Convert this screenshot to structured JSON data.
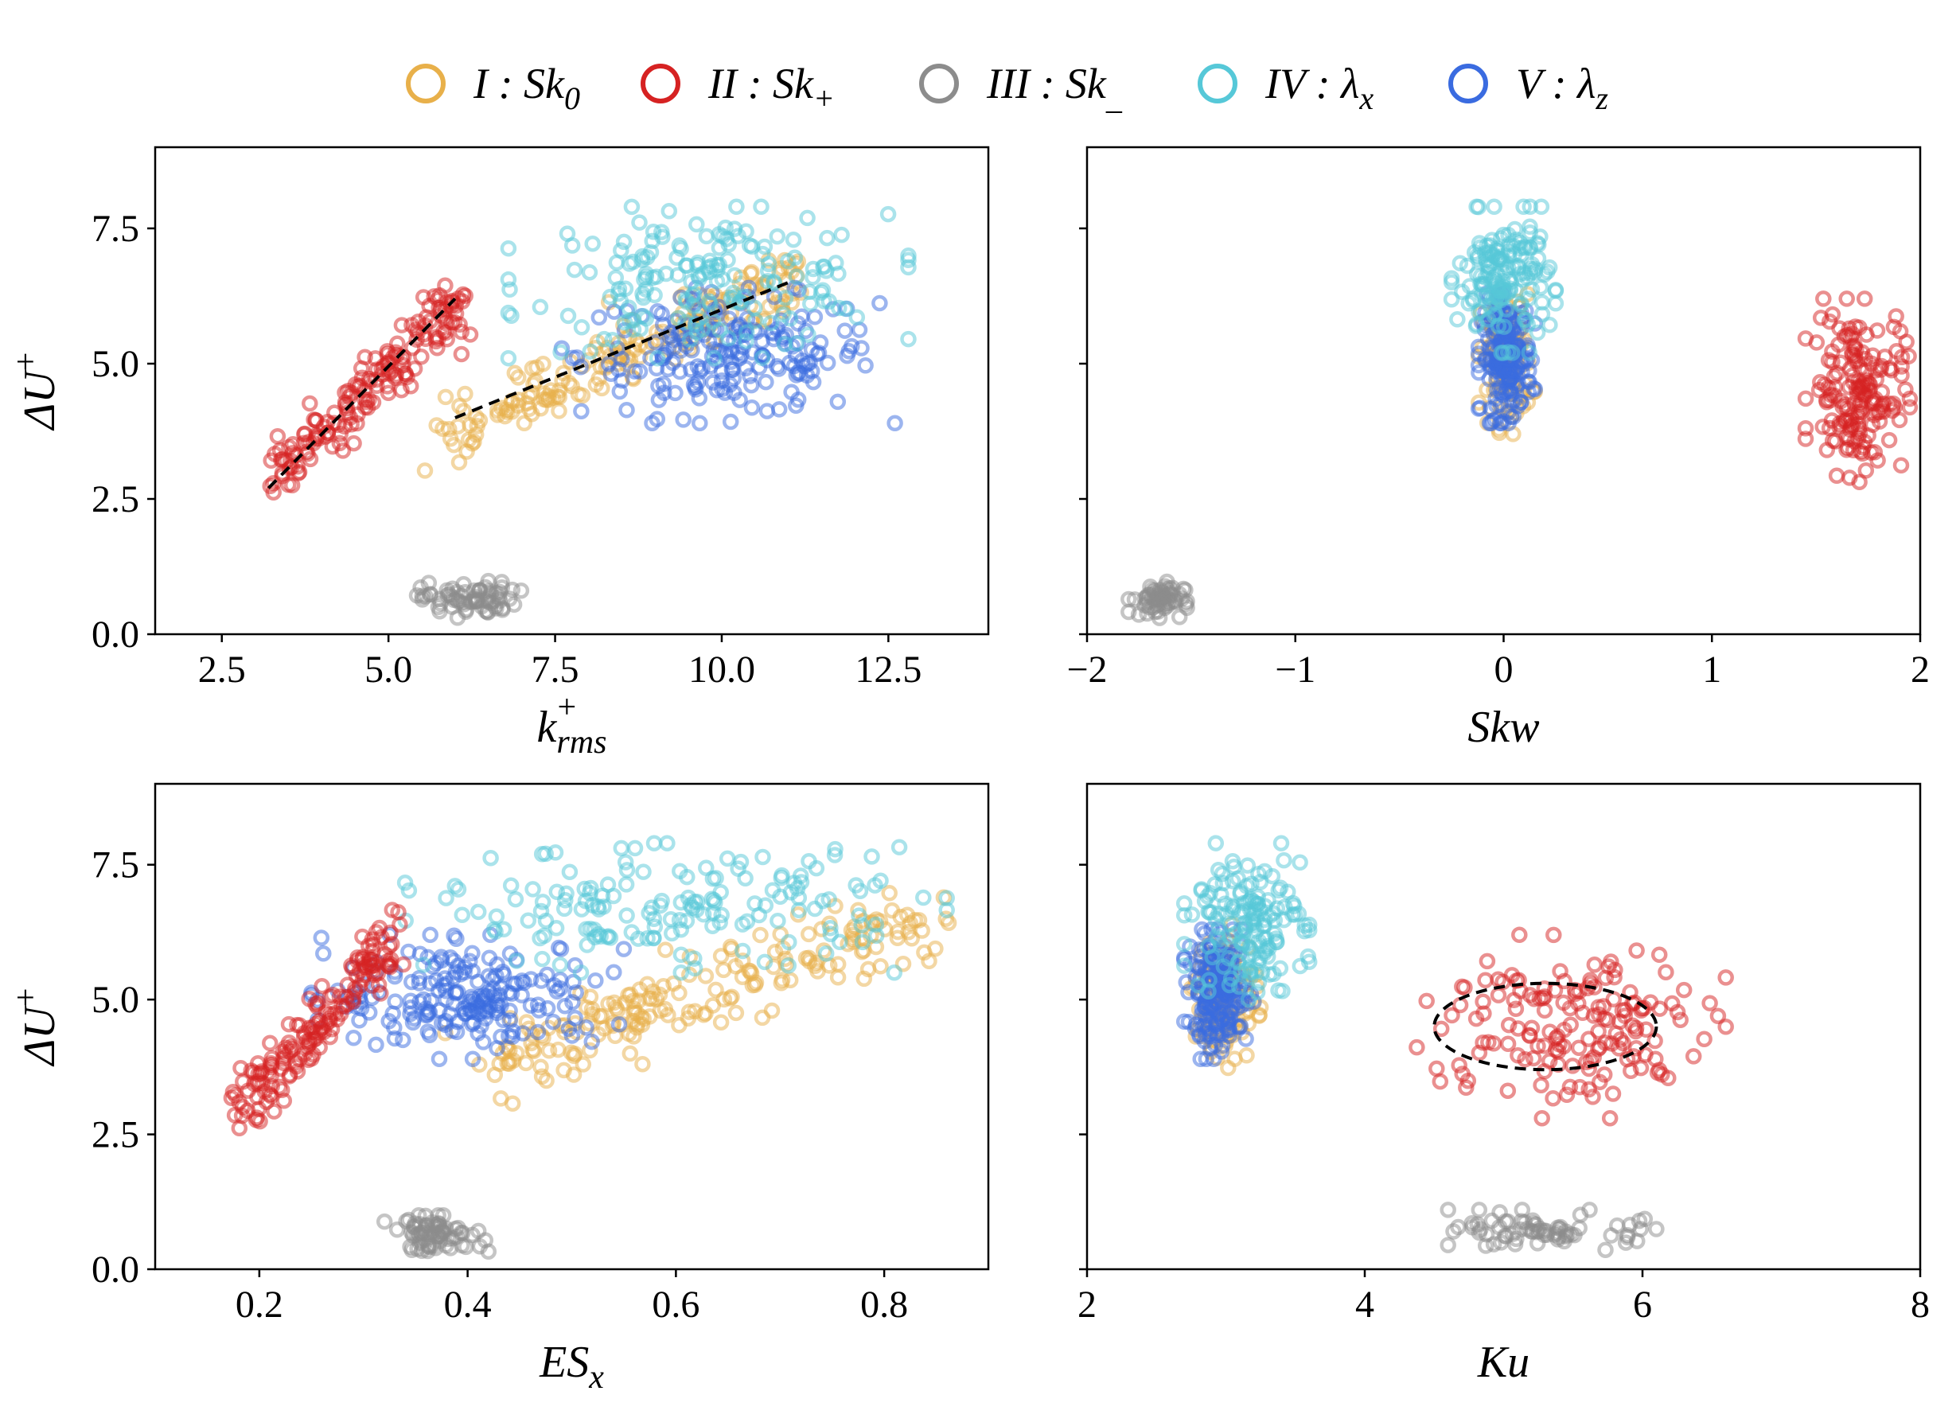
{
  "legend": [
    {
      "id": "I",
      "label": "I : Sk",
      "sub": "0",
      "sup": "",
      "color": "#E8B04A"
    },
    {
      "id": "II",
      "label": "II : Sk",
      "sub": "+",
      "sup": "",
      "color": "#D62222"
    },
    {
      "id": "III",
      "label": "III : Sk",
      "sub": "_",
      "sup": "",
      "color": "#8C8C8C"
    },
    {
      "id": "IV",
      "label": "IV : λ",
      "sub": "x",
      "sup": "",
      "color": "#56C8D8"
    },
    {
      "id": "V",
      "label": "V : λ",
      "sub": "z",
      "sup": "",
      "color": "#3A6BE0"
    }
  ],
  "chart_data": [
    {
      "type": "scatter",
      "title": "",
      "xlabel": {
        "base": "k",
        "sub": "rms",
        "sup": "+"
      },
      "ylabel": {
        "base": "ΔU",
        "sup": "+"
      },
      "xlim": [
        1.5,
        14.0
      ],
      "ylim": [
        0.0,
        9.0
      ],
      "xticks": [
        "2.5",
        "5.0",
        "7.5",
        "10.0",
        "12.5"
      ],
      "yticks": [
        "0.0",
        "2.5",
        "5.0",
        "7.5"
      ],
      "grid": false,
      "series": [
        {
          "name": "I",
          "clusters": [
            {
              "x": [
                5.8,
                11.2
              ],
              "y": [
                3.7,
                6.6
              ],
              "n": 180,
              "shape": "line",
              "spread": 0.28
            }
          ]
        },
        {
          "name": "II",
          "clusters": [
            {
              "x": [
                3.2,
                6.1
              ],
              "y": [
                2.8,
                6.2
              ],
              "n": 160,
              "shape": "line",
              "spread": 0.28
            }
          ]
        },
        {
          "name": "III",
          "clusters": [
            {
              "x": [
                5.4,
                7.0
              ],
              "y": [
                0.3,
                1.0
              ],
              "n": 70,
              "shape": "box"
            }
          ]
        },
        {
          "name": "IV",
          "clusters": [
            {
              "x": [
                6.8,
                12.8
              ],
              "y": [
                5.1,
                7.9
              ],
              "n": 170,
              "shape": "box"
            }
          ]
        },
        {
          "name": "V",
          "clusters": [
            {
              "x": [
                7.6,
                12.6
              ],
              "y": [
                3.9,
                6.4
              ],
              "n": 190,
              "shape": "box"
            }
          ]
        }
      ],
      "annotations": [
        {
          "type": "dashed-line",
          "x": [
            3.2,
            6.0
          ],
          "y": [
            2.7,
            6.2
          ]
        },
        {
          "type": "dashed-line",
          "x": [
            6.0,
            11.0
          ],
          "y": [
            4.0,
            6.5
          ]
        }
      ]
    },
    {
      "type": "scatter",
      "title": "",
      "xlabel": {
        "base": "Skw",
        "sub": "",
        "sup": ""
      },
      "ylabel": {
        "base": "",
        "sup": ""
      },
      "xlim": [
        -2.0,
        2.0
      ],
      "ylim": [
        0.0,
        9.0
      ],
      "xticks": [
        "−2",
        "−1",
        "0",
        "1",
        "2"
      ],
      "yticks": [
        "",
        "",
        "",
        ""
      ],
      "grid": false,
      "series": [
        {
          "name": "I",
          "clusters": [
            {
              "x": [
                -0.12,
                0.15
              ],
              "y": [
                3.7,
                6.4
              ],
              "n": 110,
              "shape": "box"
            }
          ]
        },
        {
          "name": "II",
          "clusters": [
            {
              "x": [
                1.45,
                1.95
              ],
              "y": [
                2.8,
                6.2
              ],
              "n": 160,
              "shape": "box"
            }
          ]
        },
        {
          "name": "III",
          "clusters": [
            {
              "x": [
                -1.8,
                -1.52
              ],
              "y": [
                0.3,
                1.0
              ],
              "n": 60,
              "shape": "box"
            }
          ]
        },
        {
          "name": "IV",
          "clusters": [
            {
              "x": [
                -0.25,
                0.25
              ],
              "y": [
                5.2,
                7.9
              ],
              "n": 150,
              "shape": "box"
            }
          ]
        },
        {
          "name": "V",
          "clusters": [
            {
              "x": [
                -0.12,
                0.15
              ],
              "y": [
                3.9,
                6.3
              ],
              "n": 190,
              "shape": "box"
            }
          ]
        }
      ],
      "annotations": []
    },
    {
      "type": "scatter",
      "title": "",
      "xlabel": {
        "base": "ES",
        "sub": "x",
        "sup": ""
      },
      "ylabel": {
        "base": "ΔU",
        "sup": "+"
      },
      "xlim": [
        0.1,
        0.9
      ],
      "ylim": [
        0.0,
        9.0
      ],
      "xticks": [
        "0.2",
        "0.4",
        "0.6",
        "0.8"
      ],
      "yticks": [
        "0.0",
        "2.5",
        "5.0",
        "7.5"
      ],
      "grid": false,
      "series": [
        {
          "name": "I",
          "clusters": [
            {
              "x": [
                0.42,
                0.85
              ],
              "y": [
                3.8,
                6.6
              ],
              "n": 190,
              "shape": "line",
              "spread": 0.35
            }
          ]
        },
        {
          "name": "II",
          "clusters": [
            {
              "x": [
                0.18,
                0.33
              ],
              "y": [
                2.8,
                6.2
              ],
              "n": 160,
              "shape": "line",
              "spread": 0.3
            }
          ]
        },
        {
          "name": "III",
          "clusters": [
            {
              "x": [
                0.32,
                0.42
              ],
              "y": [
                0.3,
                1.0
              ],
              "n": 70,
              "shape": "box"
            }
          ]
        },
        {
          "name": "IV",
          "clusters": [
            {
              "x": [
                0.34,
                0.86
              ],
              "y": [
                5.5,
                7.9
              ],
              "n": 160,
              "shape": "box"
            }
          ]
        },
        {
          "name": "V",
          "clusters": [
            {
              "x": [
                0.25,
                0.55
              ],
              "y": [
                3.9,
                6.2
              ],
              "n": 190,
              "shape": "box"
            }
          ]
        }
      ],
      "annotations": []
    },
    {
      "type": "scatter",
      "title": "",
      "xlabel": {
        "base": "Ku",
        "sub": "",
        "sup": ""
      },
      "ylabel": {
        "base": "",
        "sup": ""
      },
      "xlim": [
        2.0,
        8.0
      ],
      "ylim": [
        0.0,
        9.0
      ],
      "xticks": [
        "2",
        "4",
        "6",
        "8"
      ],
      "yticks": [
        "",
        "",
        "",
        ""
      ],
      "grid": false,
      "series": [
        {
          "name": "I",
          "clusters": [
            {
              "x": [
                2.75,
                3.25
              ],
              "y": [
                3.7,
                6.4
              ],
              "n": 110,
              "shape": "box"
            }
          ]
        },
        {
          "name": "II",
          "clusters": [
            {
              "x": [
                4.3,
                6.6
              ],
              "y": [
                2.8,
                6.2
              ],
              "n": 160,
              "shape": "box"
            }
          ]
        },
        {
          "name": "III",
          "clusters": [
            {
              "x": [
                4.6,
                6.1
              ],
              "y": [
                0.3,
                1.1
              ],
              "n": 70,
              "shape": "box"
            }
          ]
        },
        {
          "name": "IV",
          "clusters": [
            {
              "x": [
                2.7,
                3.6
              ],
              "y": [
                5.0,
                7.9
              ],
              "n": 150,
              "shape": "box"
            }
          ]
        },
        {
          "name": "V",
          "clusters": [
            {
              "x": [
                2.7,
                3.2
              ],
              "y": [
                3.9,
                6.3
              ],
              "n": 190,
              "shape": "box"
            }
          ]
        }
      ],
      "annotations": [
        {
          "type": "dashed-ellipse",
          "cx": 5.3,
          "cy": 4.5,
          "rx": 0.8,
          "ry": 0.8
        }
      ]
    }
  ]
}
